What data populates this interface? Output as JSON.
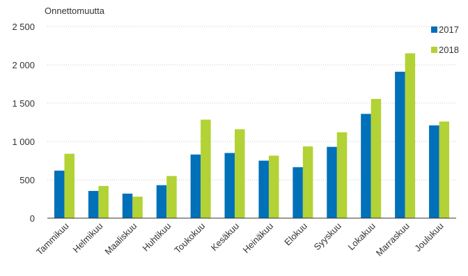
{
  "chart_data": {
    "type": "bar",
    "ylabel": "Onnettomuutta",
    "categories": [
      "Tammikuu",
      "Helmikuu",
      "Maaliskuu",
      "Huhtikuu",
      "Toukokuu",
      "Kesäkuu",
      "Heinäkuu",
      "Elokuu",
      "Syyskuu",
      "Lokakuu",
      "Marraskuu",
      "Joulukuu"
    ],
    "series": [
      {
        "name": "2017",
        "color": "#0070b8",
        "values": [
          620,
          355,
          320,
          430,
          830,
          850,
          750,
          665,
          930,
          1360,
          1910,
          1210
        ]
      },
      {
        "name": "2018",
        "color": "#b2d235",
        "values": [
          840,
          420,
          280,
          550,
          1285,
          1160,
          815,
          935,
          1120,
          1555,
          2150,
          1260
        ]
      }
    ],
    "ylim": [
      0,
      2500
    ],
    "yticks": [
      0,
      500,
      1000,
      1500,
      2000,
      2500
    ],
    "ytick_labels": [
      "0",
      "500",
      "1 000",
      "1 500",
      "2 000",
      "2 500"
    ],
    "grid": true,
    "legend": "top-right"
  }
}
